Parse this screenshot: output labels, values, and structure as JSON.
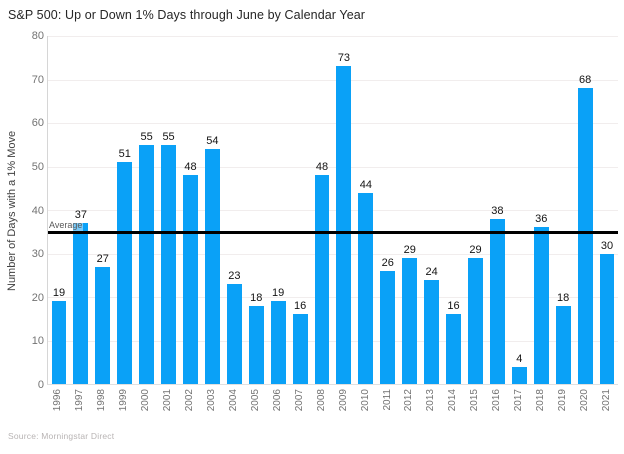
{
  "chart": {
    "title": "S&P 500: Up or Down 1% Days through June by Calendar Year",
    "source": "Source: Morningstar Direct"
  },
  "chart_data": {
    "type": "bar",
    "title": "S&P 500: Up or Down 1% Days through June by Calendar Year",
    "xlabel": "",
    "ylabel": "Number of Days with a 1% Move",
    "categories": [
      "1996",
      "1997",
      "1998",
      "1999",
      "2000",
      "2001",
      "2002",
      "2003",
      "2004",
      "2005",
      "2006",
      "2007",
      "2008",
      "2009",
      "2010",
      "2011",
      "2012",
      "2013",
      "2014",
      "2015",
      "2016",
      "2017",
      "2018",
      "2019",
      "2020",
      "2021"
    ],
    "values": [
      19,
      37,
      27,
      51,
      55,
      55,
      48,
      54,
      23,
      18,
      19,
      16,
      48,
      73,
      44,
      26,
      29,
      24,
      16,
      29,
      38,
      4,
      36,
      18,
      68,
      30
    ],
    "ylim": [
      0,
      80
    ],
    "yticks": [
      0,
      10,
      20,
      30,
      40,
      50,
      60,
      70,
      80
    ],
    "grid": "horizontal-faint",
    "legend": "none",
    "bar_color": "#0aa1f7",
    "average_line": {
      "label": "Average",
      "value": 34.8,
      "color": "#000000"
    },
    "source": "Source: Morningstar Direct"
  }
}
